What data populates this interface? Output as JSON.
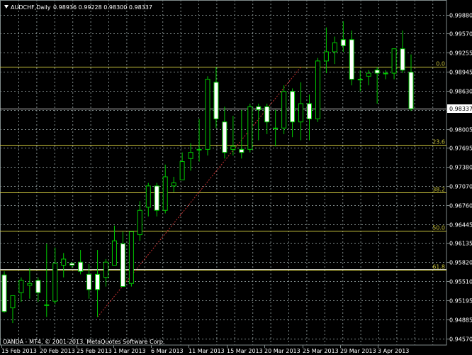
{
  "header": {
    "symbol": "AUDCHF,Daily",
    "ohlc": "0.98936 0.99228 0.98300 0.98337",
    "dropdown_icon": "triangle-down-icon"
  },
  "footer": {
    "copyright": "OANDA - MT4, © 2001-2013, MetaQuotes Software Corp."
  },
  "colors": {
    "background": "#000000",
    "grid": "#7f8a8a",
    "bull_body": "#000000",
    "bear_body": "#ffffff",
    "wick": "#00c800",
    "fib_line": "#c9c33c",
    "hline": "#c8c8c8",
    "trendline": "#c83232",
    "axis_text": "#ffffff"
  },
  "chart_data": {
    "type": "candlestick",
    "title": "AUDCHF,Daily",
    "current_price": "0.98337",
    "ylim": [
      0.9446,
      1.0012
    ],
    "y_ticks": [
      "0.99880",
      "0.99570",
      "0.99255",
      "0.98945",
      "0.98630",
      "0.98320",
      "0.98005",
      "0.97695",
      "0.97380",
      "0.97070",
      "0.96760",
      "0.96445",
      "0.96135",
      "0.95820",
      "0.95510",
      "0.95195",
      "0.94885",
      "0.94570"
    ],
    "x_labels": [
      "15 Feb 2013",
      "20 Feb 2013",
      "25 Feb 2013",
      "1 Mar 2013",
      "6 Mar 2013",
      "11 Mar 2013",
      "15 Mar 2013",
      "20 Mar 2013",
      "25 Mar 2013",
      "29 Mar 2013",
      "3 Apr 2013"
    ],
    "fibonacci": [
      {
        "label": "0.0",
        "price": 0.9902
      },
      {
        "label": "23.6",
        "price": 0.9775
      },
      {
        "label": "38.2",
        "price": 0.9696
      },
      {
        "label": "50.0",
        "price": 0.9633
      },
      {
        "label": "61.8",
        "price": 0.957
      }
    ],
    "hlines": [
      0.9571,
      0.98337
    ],
    "candles": [
      {
        "o": 0.9561,
        "h": 0.9567,
        "l": 0.9499,
        "c": 0.9501
      },
      {
        "o": 0.9507,
        "h": 0.9527,
        "l": 0.9482,
        "c": 0.9527
      },
      {
        "o": 0.9532,
        "h": 0.9557,
        "l": 0.9517,
        "c": 0.9552
      },
      {
        "o": 0.9544,
        "h": 0.9572,
        "l": 0.9522,
        "c": 0.9547
      },
      {
        "o": 0.9552,
        "h": 0.9557,
        "l": 0.9517,
        "c": 0.9532
      },
      {
        "o": 0.9512,
        "h": 0.9612,
        "l": 0.9492,
        "c": 0.9512
      },
      {
        "o": 0.9518,
        "h": 0.9606,
        "l": 0.9513,
        "c": 0.958
      },
      {
        "o": 0.9577,
        "h": 0.9597,
        "l": 0.9557,
        "c": 0.9587
      },
      {
        "o": 0.958,
        "h": 0.9582,
        "l": 0.9572,
        "c": 0.9577
      },
      {
        "o": 0.9582,
        "h": 0.9602,
        "l": 0.9562,
        "c": 0.9567
      },
      {
        "o": 0.9562,
        "h": 0.9579,
        "l": 0.9522,
        "c": 0.9537
      },
      {
        "o": 0.9562,
        "h": 0.9602,
        "l": 0.9492,
        "c": 0.9537
      },
      {
        "o": 0.9557,
        "h": 0.9587,
        "l": 0.9542,
        "c": 0.9582
      },
      {
        "o": 0.9577,
        "h": 0.9642,
        "l": 0.9577,
        "c": 0.9617
      },
      {
        "o": 0.9612,
        "h": 0.9632,
        "l": 0.9542,
        "c": 0.9542
      },
      {
        "o": 0.9547,
        "h": 0.9632,
        "l": 0.9542,
        "c": 0.9632
      },
      {
        "o": 0.9627,
        "h": 0.9682,
        "l": 0.9617,
        "c": 0.9667
      },
      {
        "o": 0.9672,
        "h": 0.9712,
        "l": 0.9657,
        "c": 0.9707
      },
      {
        "o": 0.9707,
        "h": 0.9712,
        "l": 0.9657,
        "c": 0.9667
      },
      {
        "o": 0.9667,
        "h": 0.9742,
        "l": 0.9662,
        "c": 0.9722
      },
      {
        "o": 0.9707,
        "h": 0.9722,
        "l": 0.9697,
        "c": 0.9712
      },
      {
        "o": 0.9717,
        "h": 0.9762,
        "l": 0.9717,
        "c": 0.9747
      },
      {
        "o": 0.9752,
        "h": 0.9777,
        "l": 0.9732,
        "c": 0.9762
      },
      {
        "o": 0.9767,
        "h": 0.9817,
        "l": 0.9747,
        "c": 0.9767
      },
      {
        "o": 0.9767,
        "h": 0.9887,
        "l": 0.9757,
        "c": 0.9882
      },
      {
        "o": 0.9877,
        "h": 0.9902,
        "l": 0.9802,
        "c": 0.9817
      },
      {
        "o": 0.9812,
        "h": 0.9837,
        "l": 0.9752,
        "c": 0.9762
      },
      {
        "o": 0.9767,
        "h": 0.9822,
        "l": 0.9757,
        "c": 0.9772
      },
      {
        "o": 0.9767,
        "h": 0.9832,
        "l": 0.9752,
        "c": 0.9762
      },
      {
        "o": 0.9767,
        "h": 0.9842,
        "l": 0.9762,
        "c": 0.9837
      },
      {
        "o": 0.9837,
        "h": 0.9842,
        "l": 0.9782,
        "c": 0.9832
      },
      {
        "o": 0.9837,
        "h": 0.9842,
        "l": 0.9792,
        "c": 0.9812
      },
      {
        "o": 0.9802,
        "h": 0.9832,
        "l": 0.9772,
        "c": 0.9802
      },
      {
        "o": 0.9802,
        "h": 0.9872,
        "l": 0.9792,
        "c": 0.9862
      },
      {
        "o": 0.9862,
        "h": 0.9867,
        "l": 0.9787,
        "c": 0.9812
      },
      {
        "o": 0.9812,
        "h": 0.9877,
        "l": 0.9782,
        "c": 0.9842
      },
      {
        "o": 0.9842,
        "h": 0.9857,
        "l": 0.9782,
        "c": 0.9817
      },
      {
        "o": 0.9817,
        "h": 0.9917,
        "l": 0.9812,
        "c": 0.9912
      },
      {
        "o": 0.9912,
        "h": 0.9967,
        "l": 0.9892,
        "c": 0.9927
      },
      {
        "o": 0.9927,
        "h": 0.9952,
        "l": 0.9907,
        "c": 0.9942
      },
      {
        "o": 0.9947,
        "h": 0.9977,
        "l": 0.9927,
        "c": 0.9937
      },
      {
        "o": 0.9947,
        "h": 0.9962,
        "l": 0.9872,
        "c": 0.9882
      },
      {
        "o": 0.9882,
        "h": 0.9897,
        "l": 0.9862,
        "c": 0.9882
      },
      {
        "o": 0.9887,
        "h": 0.9897,
        "l": 0.9872,
        "c": 0.9892
      },
      {
        "o": 0.9897,
        "h": 0.9902,
        "l": 0.9842,
        "c": 0.9892
      },
      {
        "o": 0.9892,
        "h": 0.9897,
        "l": 0.9882,
        "c": 0.9892
      },
      {
        "o": 0.9892,
        "h": 0.9932,
        "l": 0.9882,
        "c": 0.9932
      },
      {
        "o": 0.9932,
        "h": 0.9962,
        "l": 0.9892,
        "c": 0.9897
      },
      {
        "o": 0.98936,
        "h": 0.99228,
        "l": 0.983,
        "c": 0.98337
      }
    ]
  }
}
